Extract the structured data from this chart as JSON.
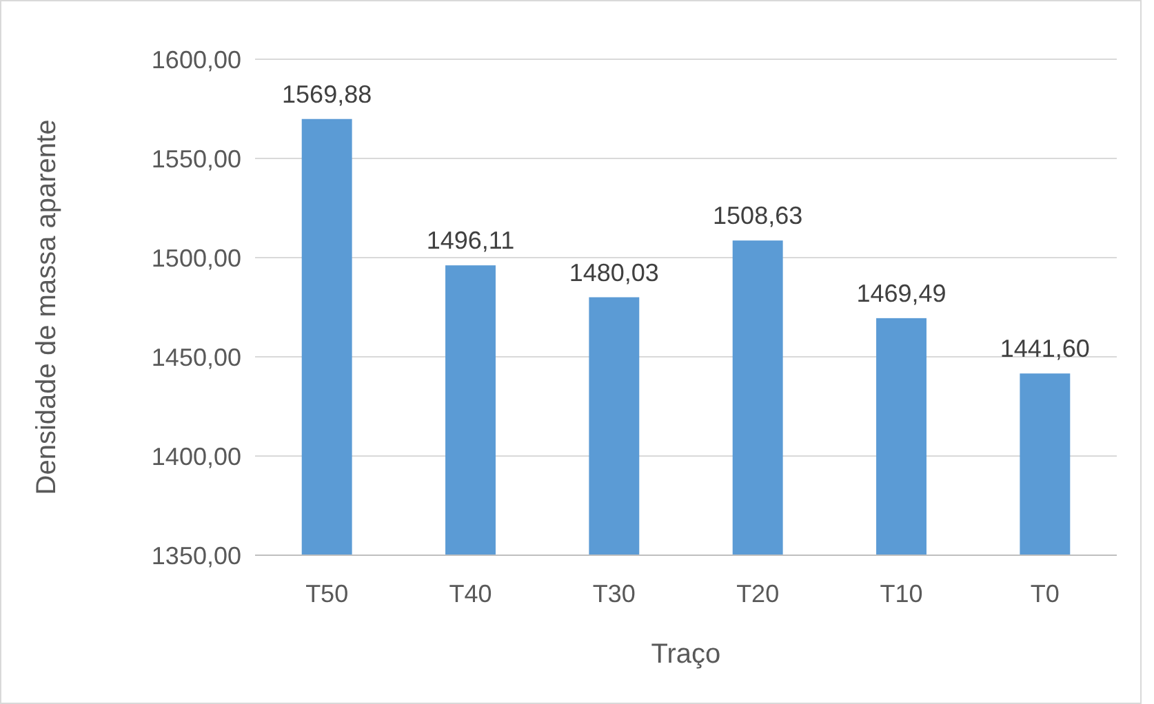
{
  "chart_data": {
    "type": "bar",
    "xlabel": "Traço",
    "ylabel": "Densidade de massa aparente",
    "categories": [
      "T50",
      "T40",
      "T30",
      "T20",
      "T10",
      "T0"
    ],
    "values": [
      1569.88,
      1496.11,
      1480.03,
      1508.63,
      1469.49,
      1441.6
    ],
    "value_labels": [
      "1569,88",
      "1496,11",
      "1480,03",
      "1508,63",
      "1469,49",
      "1441,60"
    ],
    "color": "#5b9bd5",
    "ylim": [
      1350,
      1600
    ],
    "yticks": [
      {
        "value": 1350,
        "label": "1350,00"
      },
      {
        "value": 1400,
        "label": "1400,00"
      },
      {
        "value": 1450,
        "label": "1450,00"
      },
      {
        "value": 1500,
        "label": "1500,00"
      },
      {
        "value": 1550,
        "label": "1550,00"
      },
      {
        "value": 1600,
        "label": "1600,00"
      }
    ],
    "grid": "y"
  }
}
